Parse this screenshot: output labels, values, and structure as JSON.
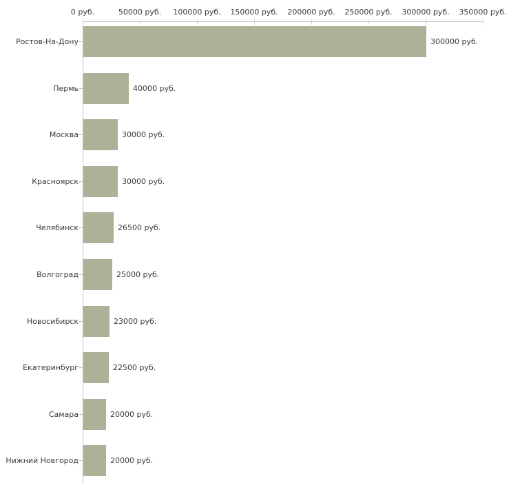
{
  "chart_data": {
    "type": "bar",
    "orientation": "horizontal",
    "title": "",
    "xlabel": "",
    "ylabel": "",
    "grid": false,
    "legend": false,
    "categories": [
      "Ростов-На-Дону",
      "Пермь",
      "Москва",
      "Красноярск",
      "Челябинск",
      "Волгоград",
      "Новосибирск",
      "Екатеринбург",
      "Самара",
      "Нижний Новгород"
    ],
    "values": [
      300000,
      40000,
      30000,
      30000,
      26500,
      25000,
      23000,
      22500,
      20000,
      20000
    ],
    "value_labels": [
      "300000 руб.",
      "40000 руб.",
      "30000 руб.",
      "30000 руб.",
      "26500 руб.",
      "25000 руб.",
      "23000 руб.",
      "22500 руб.",
      "20000 руб.",
      "20000 руб."
    ],
    "x_axis": {
      "position": "top",
      "range": [
        0,
        350000
      ],
      "tick_values": [
        0,
        50000,
        100000,
        150000,
        200000,
        250000,
        300000,
        350000
      ],
      "tick_labels": [
        "0 руб.",
        "50000 руб.",
        "100000 руб.",
        "150000 руб.",
        "200000 руб.",
        "250000 руб.",
        "300000 руб.",
        "350000 руб."
      ]
    },
    "colors": {
      "bar": "#acb197",
      "axis_line": "#bfbfbf",
      "x_tick": "#d3d4bd",
      "category_tick": "#c6c8b2",
      "text": "#3a3a3a",
      "background": "#ffffff"
    }
  }
}
